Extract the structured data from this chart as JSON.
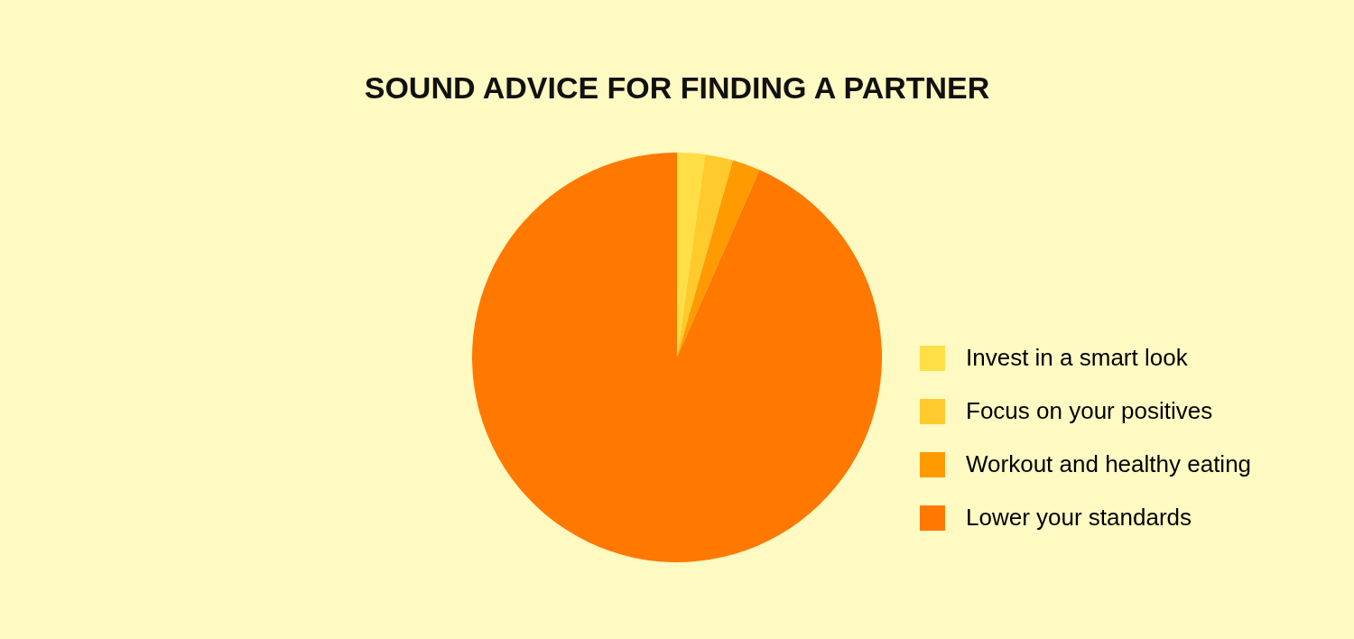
{
  "chart_data": {
    "type": "pie",
    "title": "SOUND ADVICE FOR FINDING A PARTNER",
    "categories": [
      "Invest in a smart look",
      "Focus on your positives",
      "Workout and healthy eating",
      "Lower your standards"
    ],
    "values": [
      2.2,
      2.2,
      2.2,
      93.4
    ],
    "colors": [
      "#ffdf45",
      "#ffca2c",
      "#ff9b00",
      "#ff7800"
    ],
    "legend": "right"
  }
}
